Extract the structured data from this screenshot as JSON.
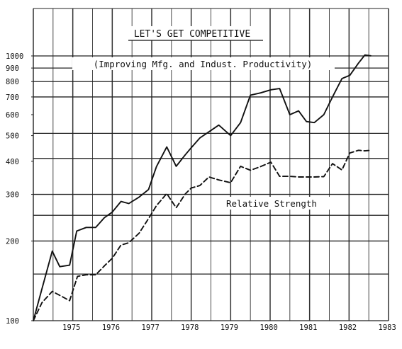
{
  "chart_data": {
    "type": "line",
    "title": "LET'S GET COMPETITIVE",
    "subtitle": "(Improving Mfg. and Indust. Productivity)",
    "y_scale": "log",
    "ylim": [
      100,
      1000
    ],
    "xlim": [
      1974.5,
      1983.5
    ],
    "grid": true,
    "y_tick_labels": [
      "100",
      "200",
      "300",
      "400",
      "500",
      "600",
      "700",
      "800",
      "900",
      "1000"
    ],
    "y_ticks": [
      100,
      200,
      300,
      400,
      500,
      600,
      700,
      800,
      900,
      1000
    ],
    "y_major_lines": [
      150,
      200,
      250,
      300,
      410,
      510,
      700,
      800,
      900,
      1000
    ],
    "x_tick_labels": [
      "1975",
      "1976",
      "1977",
      "1978",
      "1979",
      "1980",
      "1981",
      "1982",
      "1983"
    ],
    "x_ticks": [
      1975,
      1976,
      1977,
      1978,
      1979,
      1980,
      1981,
      1982,
      1983
    ],
    "x_gridlines": [
      1975.0,
      1975.5,
      1976.0,
      1976.5,
      1977.0,
      1977.5,
      1978.0,
      1978.5,
      1979.0,
      1979.5,
      1980.0,
      1980.5,
      1981.0,
      1981.5,
      1982.0,
      1982.5,
      1983.0
    ],
    "annotations": [
      {
        "text": "Relative Strength"
      }
    ],
    "series": [
      {
        "style": "solid",
        "x": [
          1974.5,
          1974.72,
          1974.98,
          1975.17,
          1975.42,
          1975.6,
          1975.84,
          1976.08,
          1976.3,
          1976.5,
          1976.72,
          1976.92,
          1977.18,
          1977.42,
          1977.62,
          1977.88,
          1978.12,
          1978.35,
          1978.5,
          1978.72,
          1978.95,
          1979.2,
          1979.5,
          1979.75,
          1980.0,
          1980.26,
          1980.52,
          1980.74,
          1981.0,
          1981.22,
          1981.42,
          1981.62,
          1981.86,
          1982.08,
          1982.32,
          1982.52,
          1982.74,
          1982.9,
          1983.05
        ],
        "y": [
          100,
          132,
          183,
          160,
          162,
          218,
          225,
          225,
          245,
          257,
          282,
          277,
          293,
          313,
          382,
          453,
          383,
          423,
          450,
          490,
          517,
          548,
          500,
          560,
          711,
          725,
          745,
          753,
          600,
          620,
          565,
          560,
          600,
          700,
          821,
          845,
          940,
          1008,
          1001
        ]
      },
      {
        "style": "dashed",
        "x": [
          1974.5,
          1974.72,
          1974.98,
          1975.2,
          1975.42,
          1975.62,
          1975.84,
          1976.08,
          1976.3,
          1976.5,
          1976.72,
          1976.92,
          1977.18,
          1977.42,
          1977.62,
          1977.88,
          1978.12,
          1978.35,
          1978.5,
          1978.72,
          1978.95,
          1979.2,
          1979.5,
          1979.75,
          1980.0,
          1980.26,
          1980.52,
          1980.74,
          1981.0,
          1981.22,
          1981.42,
          1981.62,
          1981.86,
          1982.08,
          1982.32,
          1982.52,
          1982.74,
          1982.9,
          1983.05
        ],
        "y": [
          100,
          117,
          129,
          124,
          119,
          147,
          149,
          149,
          161,
          172,
          193,
          197,
          214,
          243,
          272,
          302,
          267,
          301,
          317,
          324,
          349,
          340,
          332,
          383,
          370,
          382,
          397,
          351,
          351,
          349,
          349,
          349,
          350,
          392,
          371,
          430,
          440,
          438,
          440
        ]
      }
    ]
  }
}
